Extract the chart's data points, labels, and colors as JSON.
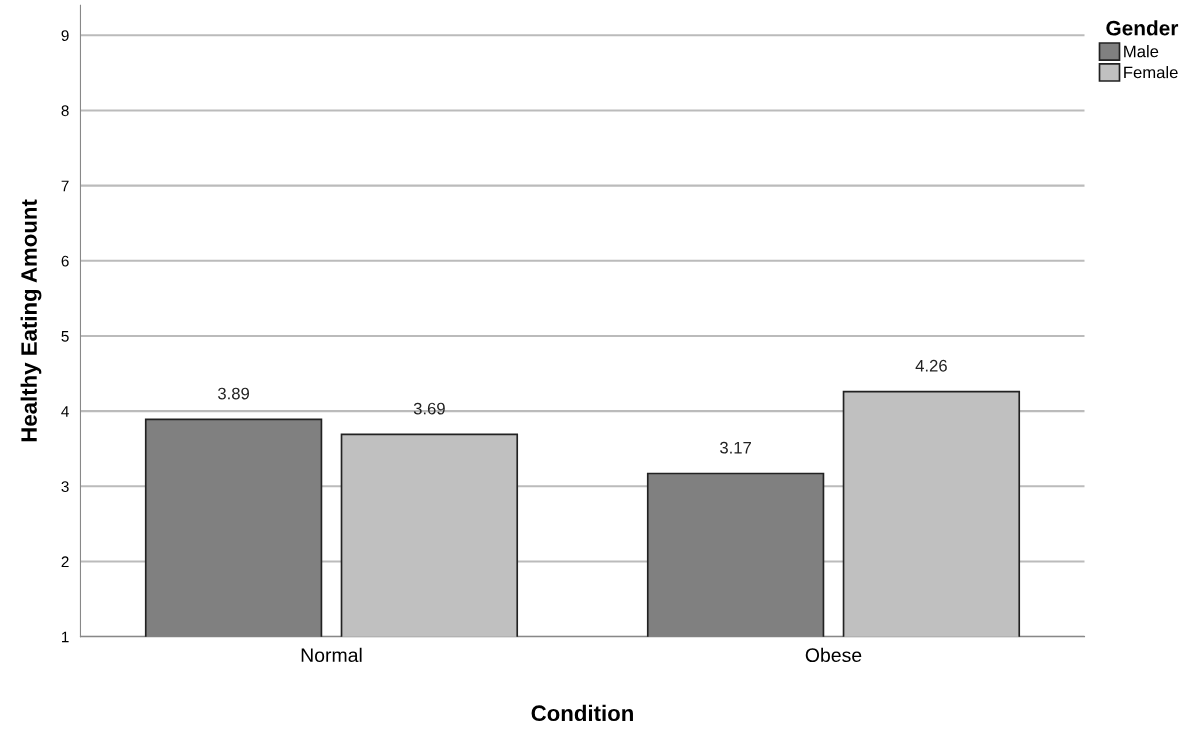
{
  "chart_data": {
    "type": "bar",
    "xlabel": "Condition",
    "ylabel": "Healthy Eating Amount",
    "legend_title": "Gender",
    "categories": [
      "Normal",
      "Obese"
    ],
    "series": [
      {
        "name": "Male",
        "color": "#808080",
        "values": [
          3.89,
          3.17
        ]
      },
      {
        "name": "Female",
        "color": "#c0c0c0",
        "values": [
          3.69,
          4.26
        ]
      }
    ],
    "ylim": [
      1,
      9.4
    ],
    "yticks": [
      1,
      2,
      3,
      4,
      5,
      6,
      7,
      8,
      9
    ],
    "grid": "y",
    "legend": "top right",
    "data_labels": true
  }
}
